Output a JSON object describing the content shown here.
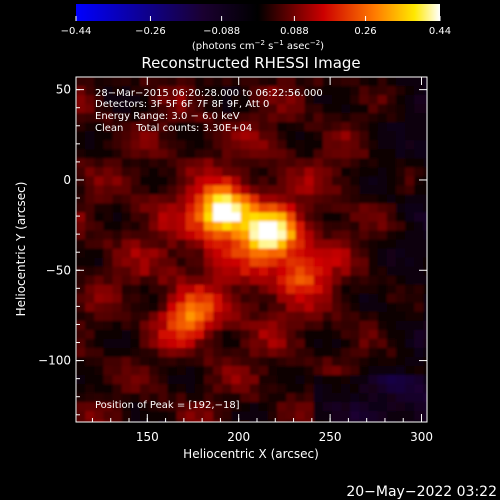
{
  "colorbar": {
    "ticks": [
      {
        "value": -0.44,
        "label": "−0.44"
      },
      {
        "value": -0.26,
        "label": "−0.26"
      },
      {
        "value": -0.088,
        "label": "−0.088"
      },
      {
        "value": 0.088,
        "label": "0.088"
      },
      {
        "value": 0.26,
        "label": "0.26"
      },
      {
        "value": 0.44,
        "label": "0.44"
      }
    ],
    "min": -0.44,
    "max": 0.44,
    "colors": [
      "#0000ff",
      "#000000",
      "#ff0000",
      "#ffff00",
      "#ffffff"
    ]
  },
  "chart_data": {
    "type": "heatmap",
    "title": "Reconstructed RHESSI Image",
    "units_line": [
      "(photons cm",
      "−2",
      " s",
      "−1",
      " asec",
      "−2",
      ")"
    ],
    "xlabel": "Heliocentric X (arcsec)",
    "ylabel": "Heliocentric Y (arcsec)",
    "xlim": [
      111,
      303
    ],
    "ylim": [
      -134,
      57
    ],
    "xticks": [
      {
        "value": 150,
        "label": "150"
      },
      {
        "value": 200,
        "label": "200"
      },
      {
        "value": 250,
        "label": "250"
      },
      {
        "value": 300,
        "label": "300"
      }
    ],
    "yticks": [
      {
        "value": 50,
        "label": "50"
      },
      {
        "value": 0,
        "label": "0"
      },
      {
        "value": -50,
        "label": "−50"
      },
      {
        "value": -100,
        "label": "−100"
      }
    ],
    "annotations": [
      "28−Mar−2015 06:20:28.000 to 06:22:56.000",
      "Detectors: 3F 5F 6F 7F 8F 9F, Att 0",
      "Energy Range: 3.0 − 6.0 keV",
      "Clean    Total counts: 3.30E+04"
    ],
    "peak_label": "Position of Peak = [192,−18]",
    "peak": [
      192,
      -18
    ],
    "sources": [
      {
        "x": 192,
        "y": -18,
        "peak": 0.44
      },
      {
        "x": 217,
        "y": -30,
        "peak": 0.39
      },
      {
        "x": 173,
        "y": -77,
        "peak": 0.24
      },
      {
        "x": 235,
        "y": -50,
        "peak": 0.18
      }
    ]
  },
  "footer": {
    "timestamp": "20−May−2022 03:22"
  }
}
